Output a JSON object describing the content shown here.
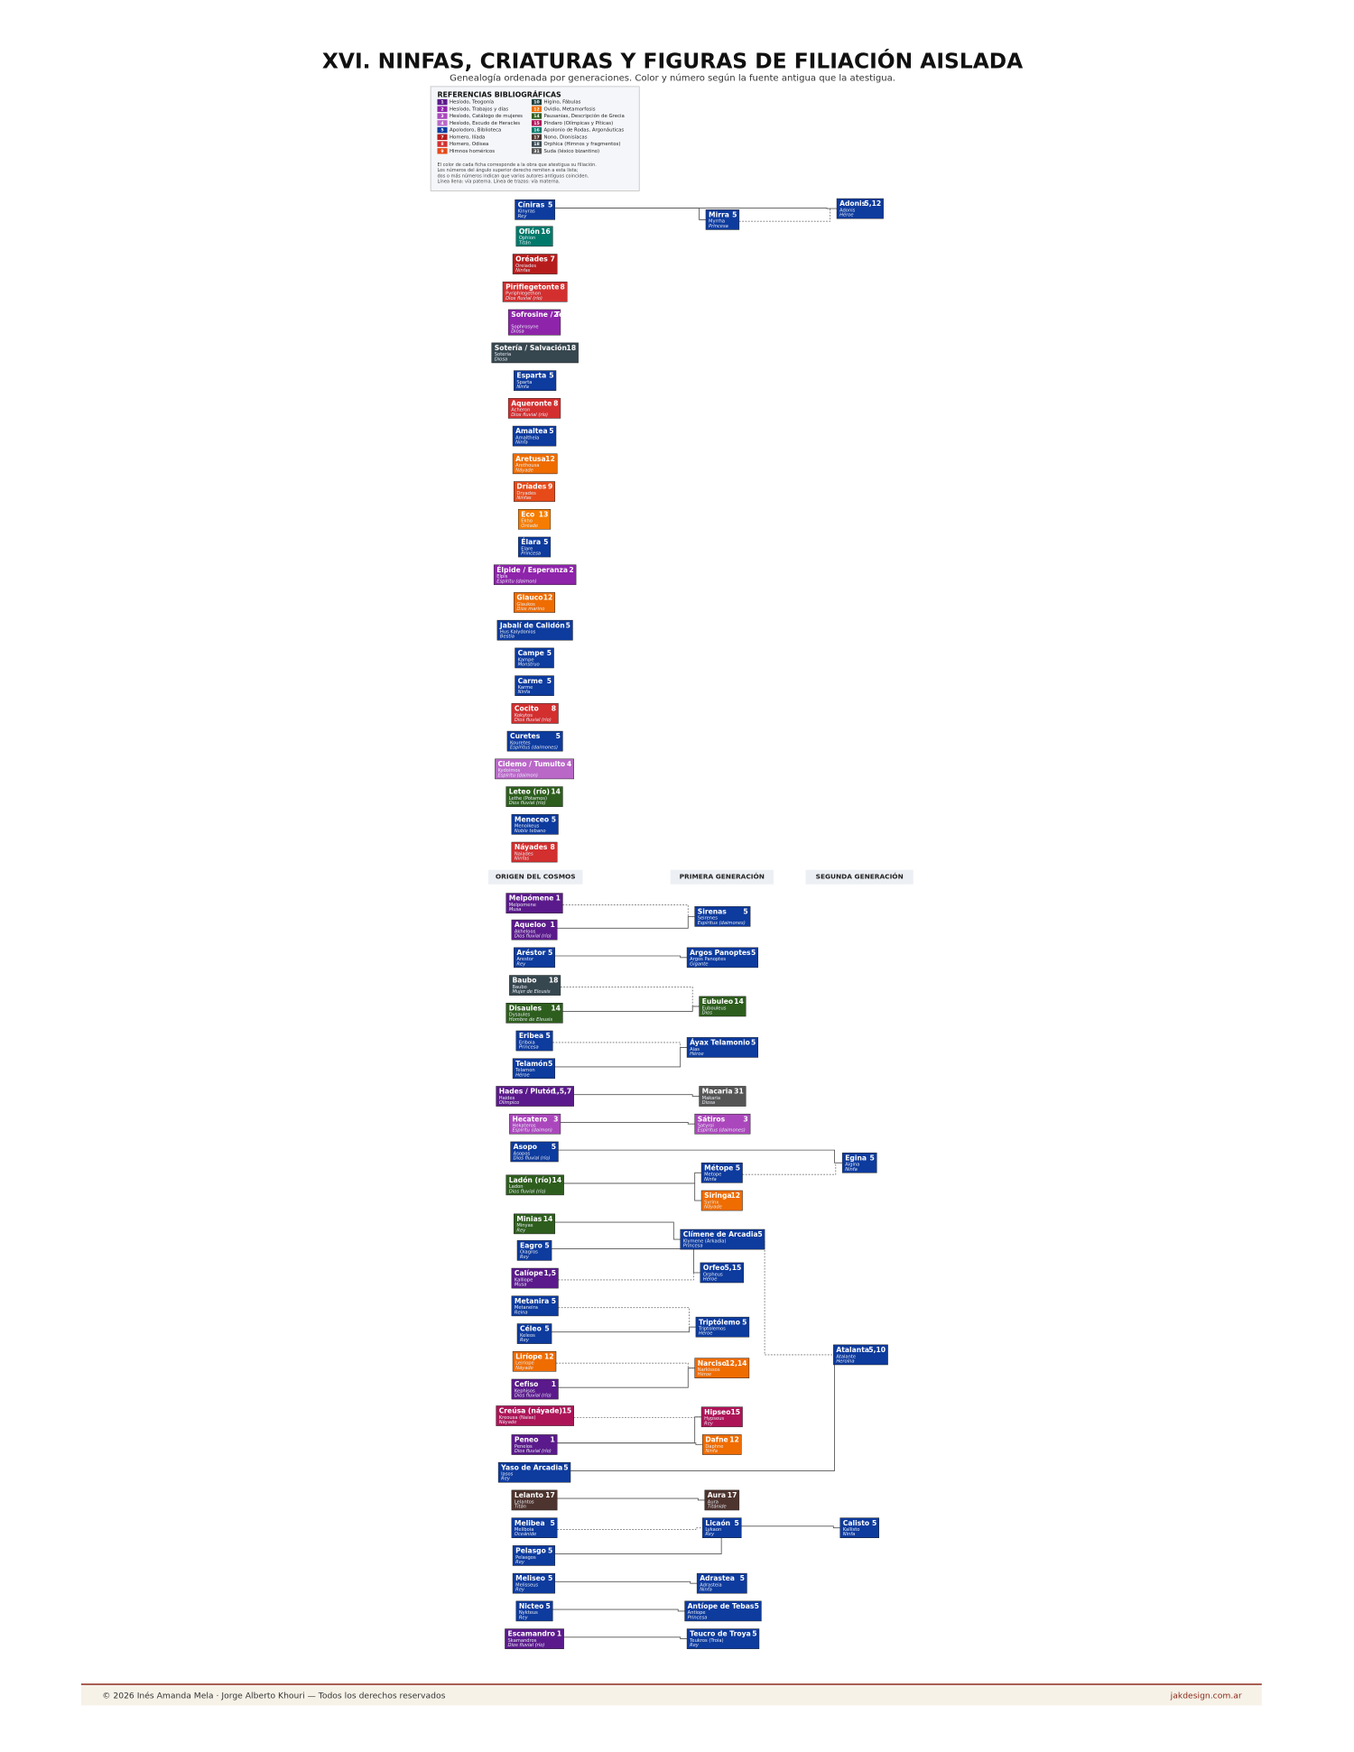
{
  "header": {
    "title": "XVI. NINFAS, CRIATURAS Y FIGURAS DE FILIACIÓN AISLADA",
    "subtitle": "Genealogía ordenada por generaciones. Color y número según la fuente antigua que la atestigua."
  },
  "references": {
    "title": "REFERENCIAS BIBLIOGRÁFICAS",
    "items": [
      {
        "num": "1",
        "label": "Hesíodo, Teogonía",
        "color": "#5b1a8b"
      },
      {
        "num": "2",
        "label": "Hesíodo, Trabajos y días",
        "color": "#8e24aa"
      },
      {
        "num": "3",
        "label": "Hesíodo, Catálogo de mujeres",
        "color": "#ab47bc"
      },
      {
        "num": "4",
        "label": "Hesíodo, Escudo de Heracles",
        "color": "#ba68c8"
      },
      {
        "num": "5",
        "label": "Apolodoro, Biblioteca",
        "color": "#0d3b9e"
      },
      {
        "num": "7",
        "label": "Homero, Ilíada",
        "color": "#b71c1c"
      },
      {
        "num": "8",
        "label": "Homero, Odisea",
        "color": "#d32f2f"
      },
      {
        "num": "9",
        "label": "Himnos homéricos",
        "color": "#e64a19"
      },
      {
        "num": "10",
        "label": "Higino, Fábulas",
        "color": "#1f3f3f"
      },
      {
        "num": "12",
        "label": "Ovidio, Metamorfosis",
        "color": "#ef6c00"
      },
      {
        "num": "14",
        "label": "Pausanias, Descripción de Grecia",
        "color": "#2e5e1e"
      },
      {
        "num": "15",
        "label": "Píndaro (Olímpicas y Píticas)",
        "color": "#ad1457"
      },
      {
        "num": "16",
        "label": "Apolonio de Rodas, Argonáuticas",
        "color": "#00796b"
      },
      {
        "num": "17",
        "label": "Nono, Dionisíacas",
        "color": "#4e342e"
      },
      {
        "num": "18",
        "label": "Orphica (Himnos y fragmentos)",
        "color": "#37474f"
      },
      {
        "num": "31",
        "label": "Suda (léxico bizantino)",
        "color": "#555555"
      }
    ],
    "notes": [
      "El color de cada ficha corresponde a la obra que atestigua su filiación.",
      "Los números del ángulo superior derecho remiten a esta lista;",
      "dos o más números indican que varios autores antiguos coinciden.",
      "Línea llena: vía paterna. Línea de trazos: vía materna."
    ]
  },
  "headers": [
    "ORIGEN DEL COSMOS",
    "PRIMERA GENERACIÓN",
    "SEGUNDA GENERACIÓN"
  ],
  "nodes": [
    {
      "name": "Cíniras",
      "num": "5",
      "latin": "Kinyras",
      "role": "Rey",
      "color": "#0d3b9e"
    },
    {
      "name": "Mirra",
      "num": "5",
      "latin": "Myrrha",
      "role": "Princesa",
      "color": "#0d3b9e"
    },
    {
      "name": "Adonis",
      "num": "5,12",
      "latin": "Adonis",
      "role": "Héroe",
      "color": "#0d3b9e"
    },
    {
      "name": "Ofión",
      "num": "16",
      "latin": "Ophion",
      "role": "Titán",
      "color": "#00796b"
    },
    {
      "name": "Oréades",
      "num": "7",
      "latin": "Oreiades",
      "role": "Ninfas",
      "color": "#b71c1c"
    },
    {
      "name": "Piriflegetonte",
      "num": "8",
      "latin": "Pyriphlegethon",
      "role": "Dios fluvial (río)",
      "color": "#d32f2f"
    },
    {
      "name": "Sofrosine / Templanza",
      "num": "2",
      "latin": "Sophrosyne",
      "role": "Diosa",
      "color": "#8e24aa"
    },
    {
      "name": "Sotería / Salvación",
      "num": "18",
      "latin": "Soteria",
      "role": "Diosa",
      "color": "#37474f"
    },
    {
      "name": "Esparta",
      "num": "5",
      "latin": "Sparta",
      "role": "Ninfa",
      "color": "#0d3b9e"
    },
    {
      "name": "Aqueronte",
      "num": "8",
      "latin": "Acheron",
      "role": "Dios fluvial (río)",
      "color": "#d32f2f"
    },
    {
      "name": "Amaltea",
      "num": "5",
      "latin": "Amaltheia",
      "role": "Ninfa",
      "color": "#0d3b9e"
    },
    {
      "name": "Aretusa",
      "num": "12",
      "latin": "Arethousa",
      "role": "Náyade",
      "color": "#ef6c00"
    },
    {
      "name": "Dríades",
      "num": "9",
      "latin": "Dryades",
      "role": "Ninfas",
      "color": "#e64a19"
    },
    {
      "name": "Eco",
      "num": "13",
      "latin": "Ekho",
      "role": "Oréade",
      "color": "#f57c00"
    },
    {
      "name": "Élara",
      "num": "5",
      "latin": "Elare",
      "role": "Princesa",
      "color": "#0d3b9e"
    },
    {
      "name": "Élpide / Esperanza",
      "num": "2",
      "latin": "Elpis",
      "role": "Espíritu (daimon)",
      "color": "#8e24aa"
    },
    {
      "name": "Glauco",
      "num": "12",
      "latin": "Glaukos",
      "role": "Dios marino",
      "color": "#ef6c00"
    },
    {
      "name": "Jabalí de Calidón",
      "num": "5",
      "latin": "Hus Kalydonios",
      "role": "Bestia",
      "color": "#0d3b9e"
    },
    {
      "name": "Campe",
      "num": "5",
      "latin": "Kampe",
      "role": "Monstruo",
      "color": "#0d3b9e"
    },
    {
      "name": "Carme",
      "num": "5",
      "latin": "Karme",
      "role": "Ninfa",
      "color": "#0d3b9e"
    },
    {
      "name": "Cocito",
      "num": "8",
      "latin": "Kokytos",
      "role": "Dios fluvial (río)",
      "color": "#d32f2f"
    },
    {
      "name": "Curetes",
      "num": "5",
      "latin": "Kouretes",
      "role": "Espíritus (daimones)",
      "color": "#0d3b9e"
    },
    {
      "name": "Cidemo / Tumulto",
      "num": "4",
      "latin": "Kydoimos",
      "role": "Espíritu (daimon)",
      "color": "#ba68c8"
    },
    {
      "name": "Leteo (río)",
      "num": "14",
      "latin": "Lethe (Potamos)",
      "role": "Dios fluvial (río)",
      "color": "#2e5e1e"
    },
    {
      "name": "Meneceo",
      "num": "5",
      "latin": "Menoikeus",
      "role": "Noble tebano",
      "color": "#0d3b9e"
    },
    {
      "name": "Náyades",
      "num": "8",
      "latin": "Naiades",
      "role": "Ninfas",
      "color": "#d32f2f"
    },
    {
      "name": "Melpómene",
      "num": "1",
      "latin": "Melpomene",
      "role": "Musa",
      "color": "#5b1a8b"
    },
    {
      "name": "Sirenas",
      "num": "5",
      "latin": "Seirenes",
      "role": "Espíritus (daimones)",
      "color": "#0d3b9e"
    },
    {
      "name": "Aqueloo",
      "num": "1",
      "latin": "Akheloos",
      "role": "Dios fluvial (río)",
      "color": "#5b1a8b"
    },
    {
      "name": "Aréstor",
      "num": "5",
      "latin": "Arestor",
      "role": "Rey",
      "color": "#0d3b9e"
    },
    {
      "name": "Argos Panoptes",
      "num": "5",
      "latin": "Argos Panoptes",
      "role": "Gigante",
      "color": "#0d3b9e"
    },
    {
      "name": "Baubo",
      "num": "18",
      "latin": "Baubo",
      "role": "Mujer de Eleusis",
      "color": "#37474f"
    },
    {
      "name": "Disaules",
      "num": "14",
      "latin": "Dysaules",
      "role": "Hombre de Eleusis",
      "color": "#2e5e1e"
    },
    {
      "name": "Eubuleo",
      "num": "14",
      "latin": "Eubouleus",
      "role": "Dios",
      "color": "#2e5e1e"
    },
    {
      "name": "Eribea",
      "num": "5",
      "latin": "Eriboia",
      "role": "Princesa",
      "color": "#0d3b9e"
    },
    {
      "name": "Áyax Telamonio",
      "num": "5",
      "latin": "Aias",
      "role": "Héroe",
      "color": "#0d3b9e"
    },
    {
      "name": "Telamón",
      "num": "5",
      "latin": "Telamon",
      "role": "Héroe",
      "color": "#0d3b9e"
    },
    {
      "name": "Hades / Plutón",
      "num": "1,5,7",
      "latin": "Haides",
      "role": "Olímpico",
      "color": "#5b1a8b"
    },
    {
      "name": "Macaria",
      "num": "31",
      "latin": "Makaria",
      "role": "Diosa",
      "color": "#555555"
    },
    {
      "name": "Hecatero",
      "num": "3",
      "latin": "Hekateros",
      "role": "Espíritu (daimon)",
      "color": "#ab47bc"
    },
    {
      "name": "Sátiros",
      "num": "3",
      "latin": "Satyroi",
      "role": "Espíritus (daimones)",
      "color": "#ab47bc"
    },
    {
      "name": "Asopo",
      "num": "5",
      "latin": "Asopos",
      "role": "Dios fluvial (río)",
      "color": "#0d3b9e"
    },
    {
      "name": "Egina",
      "num": "5",
      "latin": "Aigina",
      "role": "Ninfa",
      "color": "#0d3b9e"
    },
    {
      "name": "Ladón (río)",
      "num": "14",
      "latin": "Ladon",
      "role": "Dios fluvial (río)",
      "color": "#2e5e1e"
    },
    {
      "name": "Métope",
      "num": "5",
      "latin": "Metope",
      "role": "Ninfa",
      "color": "#0d3b9e"
    },
    {
      "name": "Siringa",
      "num": "12",
      "latin": "Syrinx",
      "role": "Náyade",
      "color": "#ef6c00"
    },
    {
      "name": "Minias",
      "num": "14",
      "latin": "Minyas",
      "role": "Rey",
      "color": "#2e5e1e"
    },
    {
      "name": "Clímene de Arcadia",
      "num": "5",
      "latin": "Klymene (Arkadia)",
      "role": "Princesa",
      "color": "#0d3b9e"
    },
    {
      "name": "Eagro",
      "num": "5",
      "latin": "Oiagros",
      "role": "Rey",
      "color": "#0d3b9e"
    },
    {
      "name": "Calíope",
      "num": "1,5",
      "latin": "Kalliope",
      "role": "Musa",
      "color": "#5b1a8b"
    },
    {
      "name": "Orfeo",
      "num": "5,15",
      "latin": "Orpheus",
      "role": "Héroe",
      "color": "#0d3b9e"
    },
    {
      "name": "Metanira",
      "num": "5",
      "latin": "Metaneira",
      "role": "Reina",
      "color": "#0d3b9e"
    },
    {
      "name": "Céleo",
      "num": "5",
      "latin": "Keleos",
      "role": "Rey",
      "color": "#0d3b9e"
    },
    {
      "name": "Triptólemo",
      "num": "5",
      "latin": "Triptolemos",
      "role": "Héroe",
      "color": "#0d3b9e"
    },
    {
      "name": "Liríope",
      "num": "12",
      "latin": "Leiriope",
      "role": "Náyade",
      "color": "#ef6c00"
    },
    {
      "name": "Narciso",
      "num": "12,14",
      "latin": "Narkissos",
      "role": "Héroe",
      "color": "#ef6c00"
    },
    {
      "name": "Atalanta",
      "num": "5,10",
      "latin": "Atalante",
      "role": "Heroína",
      "color": "#0d3b9e"
    },
    {
      "name": "Cefiso",
      "num": "1",
      "latin": "Kephisos",
      "role": "Dios fluvial (río)",
      "color": "#5b1a8b"
    },
    {
      "name": "Creúsa (náyade)",
      "num": "15",
      "latin": "Kreousa (Naias)",
      "role": "Náyade",
      "color": "#ad1457"
    },
    {
      "name": "Hipseo",
      "num": "15",
      "latin": "Hypseus",
      "role": "Rey",
      "color": "#ad1457"
    },
    {
      "name": "Peneo",
      "num": "1",
      "latin": "Peneios",
      "role": "Dios fluvial (río)",
      "color": "#5b1a8b"
    },
    {
      "name": "Dafne",
      "num": "12",
      "latin": "Daphne",
      "role": "Ninfa",
      "color": "#ef6c00"
    },
    {
      "name": "Yaso de Arcadia",
      "num": "5",
      "latin": "Iasos",
      "role": "Rey",
      "color": "#0d3b9e"
    },
    {
      "name": "Lelanto",
      "num": "17",
      "latin": "Lelantos",
      "role": "Titán",
      "color": "#4e342e"
    },
    {
      "name": "Aura",
      "num": "17",
      "latin": "Aura",
      "role": "Titánide",
      "color": "#4e342e"
    },
    {
      "name": "Melibea",
      "num": "5",
      "latin": "Meliboia",
      "role": "Oceánide",
      "color": "#0d3b9e"
    },
    {
      "name": "Licaón",
      "num": "5",
      "latin": "Lykaon",
      "role": "Rey",
      "color": "#0d3b9e"
    },
    {
      "name": "Calisto",
      "num": "5",
      "latin": "Kallisto",
      "role": "Ninfa",
      "color": "#0d3b9e"
    },
    {
      "name": "Pelasgo",
      "num": "5",
      "latin": "Pelasgos",
      "role": "Rey",
      "color": "#0d3b9e"
    },
    {
      "name": "Meliseo",
      "num": "5",
      "latin": "Melisseus",
      "role": "Rey",
      "color": "#0d3b9e"
    },
    {
      "name": "Adrastea",
      "num": "5",
      "latin": "Adrasteia",
      "role": "Ninfa",
      "color": "#0d3b9e"
    },
    {
      "name": "Nicteo",
      "num": "5",
      "latin": "Nykteus",
      "role": "Rey",
      "color": "#0d3b9e"
    },
    {
      "name": "Antíope de Tebas",
      "num": "5",
      "latin": "Antiope",
      "role": "Princesa",
      "color": "#0d3b9e"
    },
    {
      "name": "Escamandro",
      "num": "1",
      "latin": "Skamandros",
      "role": "Dios fluvial (río)",
      "color": "#5b1a8b"
    },
    {
      "name": "Teucro de Troya",
      "num": "5",
      "latin": "Teukros (Troia)",
      "role": "Rey",
      "color": "#0d3b9e"
    }
  ],
  "footer": {
    "copyright": "© 2026  Inés Amanda Mela  ·  Jorge Alberto Khouri  —  Todos los derechos reservados",
    "site": "jakdesign.com.ar"
  }
}
